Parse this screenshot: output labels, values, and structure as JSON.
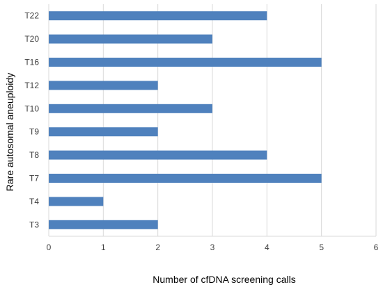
{
  "chart_data": {
    "type": "bar",
    "orientation": "horizontal",
    "categories": [
      "T3",
      "T4",
      "T7",
      "T8",
      "T9",
      "T10",
      "T12",
      "T16",
      "T20",
      "T22"
    ],
    "values": [
      2,
      1,
      5,
      4,
      2,
      3,
      2,
      5,
      3,
      4
    ],
    "title": "",
    "xlabel": "Number of cfDNA screening calls",
    "ylabel": "Rare autosomal aneuploidy",
    "xlim": [
      0,
      6
    ],
    "xticks": [
      "0",
      "1",
      "2",
      "3",
      "4",
      "5",
      "6"
    ],
    "grid": "vertical",
    "legend": "none",
    "bar_color": "#4f81bd",
    "grid_color": "#d9d9d9"
  }
}
